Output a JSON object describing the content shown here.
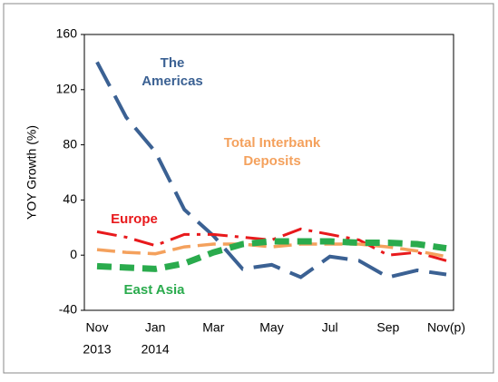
{
  "chart_data": {
    "type": "line",
    "y_label": "YOY Growth (%)",
    "categories": [
      "Nov",
      null,
      "Jan",
      null,
      "Mar",
      null,
      "May",
      null,
      "Jul",
      null,
      "Sep",
      null,
      "Nov(p)"
    ],
    "category_years": [
      "2013",
      null,
      "2014",
      null,
      null,
      null,
      null,
      null,
      null,
      null,
      null,
      null,
      null
    ],
    "ylim": [
      -40,
      160
    ],
    "yticks": [
      -40,
      0,
      40,
      80,
      120,
      160
    ],
    "grid": false,
    "series": [
      {
        "name": "The Americas",
        "color": "#3b6193",
        "values": [
          140,
          100,
          75,
          33,
          14,
          -10,
          -7,
          -16,
          -1,
          -4,
          -16,
          -11,
          -14
        ]
      },
      {
        "name": "Europe",
        "color": "#e8191c",
        "values": [
          17,
          13,
          7,
          15,
          15,
          13,
          11,
          19,
          15,
          11,
          0,
          2,
          -4
        ]
      },
      {
        "name": "Total Interbank Deposits",
        "color": "#f4a15d",
        "values": [
          4,
          2,
          1,
          6,
          8,
          8,
          6,
          8,
          8,
          8,
          6,
          3,
          -1
        ]
      },
      {
        "name": "East Asia",
        "color": "#2aab4d",
        "values": [
          -8,
          -9,
          -10,
          -6,
          2,
          8,
          10,
          10,
          10,
          9,
          9,
          8,
          5
        ]
      }
    ]
  }
}
